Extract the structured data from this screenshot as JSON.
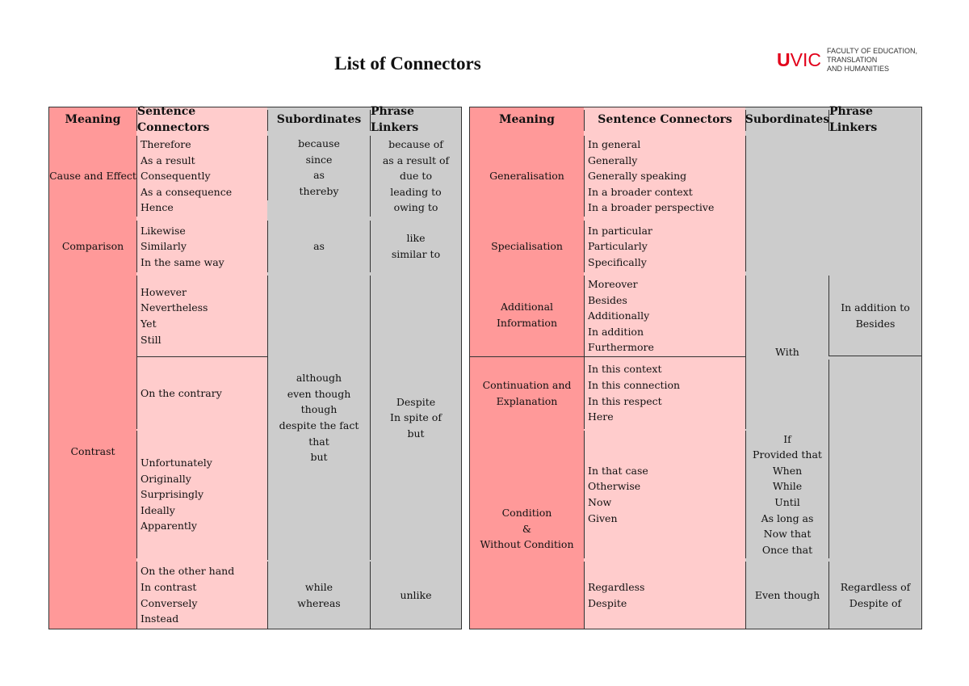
{
  "title": "List of Connectors",
  "logo": {
    "mark_bold": "U",
    "mark_rest": "VIC",
    "faculty": "FACULTY OF EDUCATION,\nTRANSLATION\nAND HUMANITIES"
  },
  "colors": {
    "meaning": "#ff9999",
    "sentence": "#ffcccc",
    "other": "#cccccc",
    "logo": "#e2001a"
  },
  "headers": {
    "meaning": "Meaning",
    "sentence": "Sentence Connectors",
    "subordinates": "Subordinates",
    "phrase": "Phrase Linkers"
  },
  "left": {
    "meaning": [
      "Cause and Effect",
      "Comparison",
      "Contrast"
    ],
    "sentence": [
      "Therefore\nAs a result\nConsequently\nAs a consequence\nHence",
      "Likewise\nSimilarly\nIn the same way",
      "However\nNevertheless\nYet\nStill",
      "On the contrary",
      "Unfortunately\nOriginally\nSurprisingly\nIdeally\nApparently",
      "On the other hand\nIn contrast\nConversely\nInstead"
    ],
    "subordinates": [
      "because\nsince\nas\nthereby",
      "as",
      "although\neven though\nthough\ndespite the fact that\nbut",
      "while\nwhereas"
    ],
    "phrase": [
      "because of\nas a result of\ndue to\nleading to\nowing to",
      "like\nsimilar to",
      "Despite\nIn spite of\nbut",
      "unlike"
    ]
  },
  "right": {
    "meaning": [
      "Generalisation",
      "Specialisation",
      "Additional\nInformation",
      "Continuation and\nExplanation",
      "Condition\n&\nWithout Condition"
    ],
    "sentence": [
      "In general\nGenerally\nGenerally speaking\nIn a broader context\nIn a broader perspective",
      "In particular\nParticularly\nSpecifically",
      "Moreover\nBesides\nAdditionally\nIn addition\nFurthermore",
      "In this context\nIn this connection\nIn this respect\nHere",
      "In that case\nOtherwise\nNow\nGiven",
      "Regardless\nDespite"
    ],
    "subordinates": [
      "With",
      "If\nProvided that\nWhen\nWhile\nUntil\nAs long as\nNow that\nOnce that",
      "Even though"
    ],
    "phrase": [
      "In addition to\nBesides",
      "Regardless of\nDespite of"
    ]
  }
}
